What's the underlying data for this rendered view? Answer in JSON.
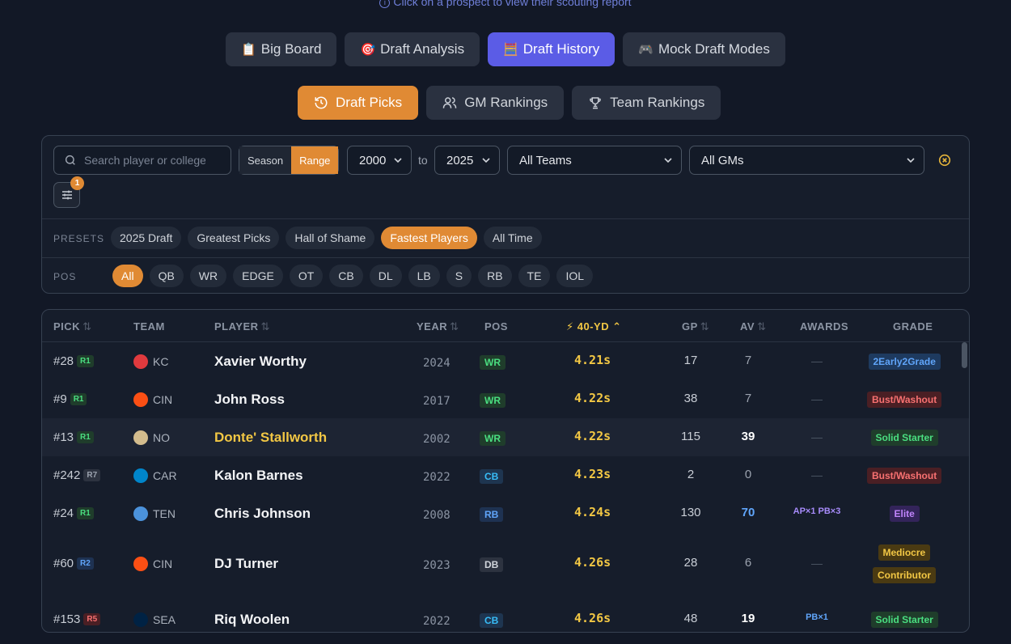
{
  "hint": "Click on a prospect to view their scouting report",
  "main_tabs": [
    {
      "icon": "📋",
      "label": "Big Board"
    },
    {
      "icon": "🎯",
      "label": "Draft Analysis"
    },
    {
      "icon": "🧮",
      "label": "Draft History"
    },
    {
      "icon": "🎮",
      "label": "Mock Draft Modes"
    }
  ],
  "sub_tabs": [
    {
      "label": "Draft Picks"
    },
    {
      "label": "GM Rankings"
    },
    {
      "label": "Team Rankings"
    }
  ],
  "filters": {
    "search_placeholder": "Search player or college",
    "mode": [
      "Season",
      "Range"
    ],
    "year_from": "2000",
    "to_label": "to",
    "year_to": "2025",
    "team": "All Teams",
    "gm": "All GMs",
    "active_filter_count": "1",
    "presets_label": "PRESETS",
    "presets": [
      "2025 Draft",
      "Greatest Picks",
      "Hall of Shame",
      "Fastest Players",
      "All Time"
    ],
    "pos_label": "POS",
    "positions": [
      "All",
      "QB",
      "WR",
      "EDGE",
      "OT",
      "CB",
      "DL",
      "LB",
      "S",
      "RB",
      "TE",
      "IOL"
    ]
  },
  "table": {
    "headers": {
      "pick": "PICK",
      "team": "TEAM",
      "player": "PLAYER",
      "year": "YEAR",
      "pos": "POS",
      "forty": "⚡ 40-YD",
      "gp": "GP",
      "av": "AV",
      "awards": "AWARDS",
      "grade": "GRADE"
    },
    "rows": [
      {
        "pick": "#28",
        "round": "R1",
        "team": "KC",
        "player": "Xavier Worthy",
        "year": "2024",
        "pos": "WR",
        "forty": "4.21s",
        "gp": "17",
        "av": "7",
        "awards": "—",
        "grade": [
          "2Early2Grade"
        ]
      },
      {
        "pick": "#9",
        "round": "R1",
        "team": "CIN",
        "player": "John Ross",
        "year": "2017",
        "pos": "WR",
        "forty": "4.22s",
        "gp": "38",
        "av": "7",
        "awards": "—",
        "grade": [
          "Bust/Washout"
        ]
      },
      {
        "pick": "#13",
        "round": "R1",
        "team": "NO",
        "player": "Donte' Stallworth",
        "year": "2002",
        "pos": "WR",
        "forty": "4.22s",
        "gp": "115",
        "av": "39",
        "awards": "—",
        "grade": [
          "Solid Starter"
        ]
      },
      {
        "pick": "#242",
        "round": "R7",
        "team": "CAR",
        "player": "Kalon Barnes",
        "year": "2022",
        "pos": "CB",
        "forty": "4.23s",
        "gp": "2",
        "av": "0",
        "awards": "—",
        "grade": [
          "Bust/Washout"
        ]
      },
      {
        "pick": "#24",
        "round": "R1",
        "team": "TEN",
        "player": "Chris Johnson",
        "year": "2008",
        "pos": "RB",
        "forty": "4.24s",
        "gp": "130",
        "av": "70",
        "awards": "AP×1 PB×3",
        "grade": [
          "Elite"
        ]
      },
      {
        "pick": "#60",
        "round": "R2",
        "team": "CIN",
        "player": "DJ Turner",
        "year": "2023",
        "pos": "DB",
        "forty": "4.26s",
        "gp": "28",
        "av": "6",
        "awards": "—",
        "grade": [
          "Mediocre",
          "Contributor"
        ]
      },
      {
        "pick": "#153",
        "round": "R5",
        "team": "SEA",
        "player": "Riq Woolen",
        "year": "2022",
        "pos": "CB",
        "forty": "4.26s",
        "gp": "48",
        "av": "19",
        "awards": "PB×1",
        "grade": [
          "Solid Starter"
        ]
      }
    ]
  },
  "colors": {
    "accent": "#e08a34",
    "active_tab": "#5b5ce6",
    "forty": "#f2c744",
    "background": "#121826"
  }
}
